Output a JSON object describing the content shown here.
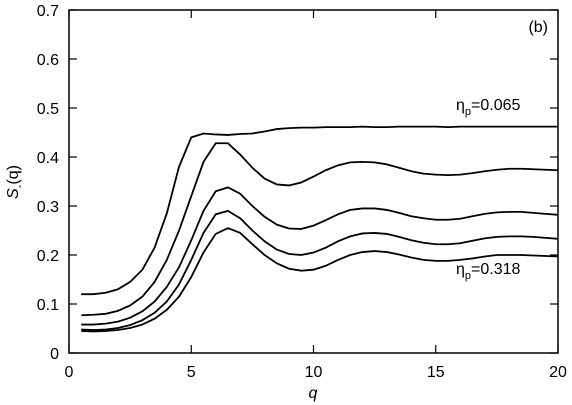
{
  "chart_data": {
    "type": "line",
    "panel_label": "(b)",
    "xlabel": "q",
    "ylabel": [
      "S",
      "-",
      "(q)"
    ],
    "annotations": [
      {
        "parts": [
          "η",
          "p",
          "=0.065"
        ]
      },
      {
        "parts": [
          "η",
          "p",
          "=0.318"
        ]
      }
    ],
    "xlim": [
      0,
      20
    ],
    "ylim": [
      0,
      0.7
    ],
    "xticks": [
      0,
      5,
      10,
      15,
      20
    ],
    "yticks": [
      0,
      0.1,
      0.2,
      0.3,
      0.4,
      0.5,
      0.6,
      0.7
    ],
    "x": [
      0.5,
      1,
      1.5,
      2,
      2.5,
      3,
      3.5,
      4,
      4.5,
      5,
      5.5,
      6,
      6.5,
      7,
      7.5,
      8,
      8.5,
      9,
      9.5,
      10,
      10.5,
      11,
      11.5,
      12,
      12.5,
      13,
      13.5,
      14,
      14.5,
      15,
      15.5,
      16,
      16.5,
      17,
      17.5,
      18,
      18.5,
      19,
      19.5,
      20
    ],
    "series": [
      {
        "color": "#000000",
        "values": [
          0.12,
          0.12,
          0.123,
          0.13,
          0.145,
          0.17,
          0.215,
          0.285,
          0.38,
          0.44,
          0.448,
          0.446,
          0.445,
          0.447,
          0.448,
          0.452,
          0.457,
          0.459,
          0.46,
          0.46,
          0.461,
          0.461,
          0.461,
          0.462,
          0.461,
          0.461,
          0.462,
          0.462,
          0.462,
          0.462,
          0.461,
          0.462,
          0.462,
          0.462,
          0.462,
          0.462,
          0.462,
          0.462,
          0.462,
          0.462
        ]
      },
      {
        "color": "#000000",
        "values": [
          0.077,
          0.078,
          0.08,
          0.086,
          0.097,
          0.115,
          0.145,
          0.19,
          0.25,
          0.32,
          0.39,
          0.428,
          0.428,
          0.405,
          0.378,
          0.356,
          0.344,
          0.342,
          0.348,
          0.36,
          0.373,
          0.383,
          0.389,
          0.39,
          0.389,
          0.385,
          0.378,
          0.371,
          0.366,
          0.364,
          0.363,
          0.364,
          0.367,
          0.371,
          0.374,
          0.376,
          0.376,
          0.375,
          0.374,
          0.373
        ]
      },
      {
        "color": "#000000",
        "values": [
          0.058,
          0.058,
          0.06,
          0.064,
          0.072,
          0.085,
          0.105,
          0.135,
          0.175,
          0.23,
          0.29,
          0.33,
          0.338,
          0.325,
          0.3,
          0.278,
          0.262,
          0.254,
          0.253,
          0.26,
          0.271,
          0.283,
          0.292,
          0.295,
          0.295,
          0.292,
          0.286,
          0.279,
          0.275,
          0.272,
          0.272,
          0.274,
          0.279,
          0.284,
          0.287,
          0.288,
          0.288,
          0.286,
          0.284,
          0.282
        ]
      },
      {
        "color": "#000000",
        "values": [
          0.048,
          0.047,
          0.048,
          0.051,
          0.057,
          0.067,
          0.082,
          0.105,
          0.14,
          0.19,
          0.245,
          0.283,
          0.29,
          0.275,
          0.25,
          0.228,
          0.211,
          0.202,
          0.2,
          0.205,
          0.215,
          0.228,
          0.238,
          0.244,
          0.245,
          0.243,
          0.237,
          0.23,
          0.225,
          0.222,
          0.222,
          0.224,
          0.229,
          0.234,
          0.237,
          0.238,
          0.238,
          0.237,
          0.235,
          0.233
        ]
      },
      {
        "color": "#000000",
        "values": [
          0.045,
          0.044,
          0.045,
          0.047,
          0.051,
          0.058,
          0.07,
          0.088,
          0.115,
          0.155,
          0.205,
          0.243,
          0.255,
          0.245,
          0.222,
          0.2,
          0.183,
          0.172,
          0.168,
          0.17,
          0.178,
          0.19,
          0.2,
          0.206,
          0.208,
          0.206,
          0.201,
          0.195,
          0.19,
          0.188,
          0.188,
          0.19,
          0.193,
          0.197,
          0.2,
          0.2,
          0.2,
          0.199,
          0.198,
          0.197
        ]
      }
    ]
  }
}
